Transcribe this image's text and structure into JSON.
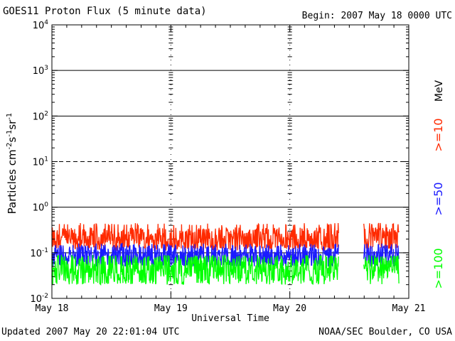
{
  "header": {
    "title": "GOES11 Proton Flux (5 minute data)",
    "begin": "Begin: 2007 May 18 0000 UTC"
  },
  "footer": {
    "updated": "Updated 2007 May 20 22:01:04 UTC",
    "credit": "NOAA/SEC Boulder, CO USA"
  },
  "chart_data": {
    "type": "line",
    "title": "GOES11 Proton Flux (5 minute data)",
    "xlabel": "Universal Time",
    "ylabel": "Particles cm-2 s-1 sr-1",
    "yscale": "log",
    "ylim": [
      0.01,
      10000
    ],
    "y_ticks": [
      {
        "value": 0.01,
        "base": "10",
        "exp": "-2"
      },
      {
        "value": 0.1,
        "base": "10",
        "exp": "-1"
      },
      {
        "value": 1,
        "base": "10",
        "exp": "0"
      },
      {
        "value": 10,
        "base": "10",
        "exp": "1"
      },
      {
        "value": 100,
        "base": "10",
        "exp": "2"
      },
      {
        "value": 1000,
        "base": "10",
        "exp": "3"
      },
      {
        "value": 10000,
        "base": "10",
        "exp": "4"
      }
    ],
    "x_ticks": [
      "May 18",
      "May 19",
      "May 20",
      "May 21"
    ],
    "xlim_days": [
      0,
      3
    ],
    "reference_lines": [
      {
        "value": 1000,
        "style": "solid"
      },
      {
        "value": 100,
        "style": "solid"
      },
      {
        "value": 10,
        "style": "dashed"
      },
      {
        "value": 1,
        "style": "solid"
      },
      {
        "value": 0.1,
        "style": "solid"
      }
    ],
    "data_gap_days": [
      2.41,
      2.62
    ],
    "data_end_day": 2.92,
    "unit_label": "MeV",
    "series": [
      {
        "name": ">=10",
        "color": "#ff2a00",
        "baseline": 0.2,
        "spread_min": 0.12,
        "spread_max": 0.45
      },
      {
        "name": ">=50",
        "color": "#1a1aff",
        "baseline": 0.085,
        "spread_min": 0.05,
        "spread_max": 0.16
      },
      {
        "name": ">=100",
        "color": "#00ff00",
        "baseline": 0.045,
        "spread_min": 0.02,
        "spread_max": 0.09
      }
    ]
  }
}
